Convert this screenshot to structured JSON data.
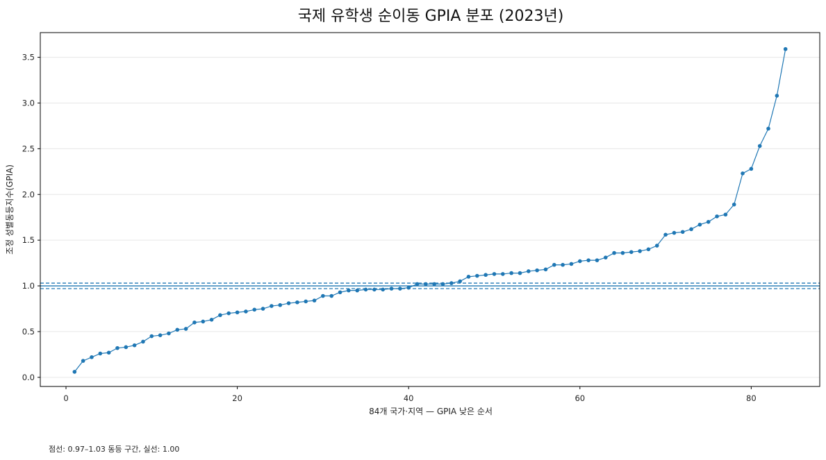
{
  "chart_data": {
    "type": "line",
    "title": "국제 유학생 순이동 GPIA 분포 (2023년)",
    "xlabel": "84개 국가·지역 — GPIA 낮은 순서",
    "ylabel": "조정 성별동등지수(GPIA)",
    "footnote": "점선: 0.97–1.03 동등 구간, 실선: 1.00",
    "xlim": [
      -3,
      88
    ],
    "ylim": [
      -0.1,
      3.77
    ],
    "x_ticks": [
      0,
      20,
      40,
      60,
      80
    ],
    "x_tick_labels": [
      "0",
      "20",
      "40",
      "60",
      "80"
    ],
    "y_ticks": [
      0.0,
      0.5,
      1.0,
      1.5,
      2.0,
      2.5,
      3.0,
      3.5
    ],
    "y_tick_labels": [
      "0.0",
      "0.5",
      "1.0",
      "1.5",
      "2.0",
      "2.5",
      "3.0",
      "3.5"
    ],
    "grid": "horizontal",
    "reference_lines": [
      {
        "y": 1.0,
        "style": "solid"
      },
      {
        "y": 0.97,
        "style": "dashed"
      },
      {
        "y": 1.03,
        "style": "dashed"
      }
    ],
    "series": [
      {
        "color": "#1f77b4",
        "x": [
          1,
          2,
          3,
          4,
          5,
          6,
          7,
          8,
          9,
          10,
          11,
          12,
          13,
          14,
          15,
          16,
          17,
          18,
          19,
          20,
          21,
          22,
          23,
          24,
          25,
          26,
          27,
          28,
          29,
          30,
          31,
          32,
          33,
          34,
          35,
          36,
          37,
          38,
          39,
          40,
          41,
          42,
          43,
          44,
          45,
          46,
          47,
          48,
          49,
          50,
          51,
          52,
          53,
          54,
          55,
          56,
          57,
          58,
          59,
          60,
          61,
          62,
          63,
          64,
          65,
          66,
          67,
          68,
          69,
          70,
          71,
          72,
          73,
          74,
          75,
          76,
          77,
          78,
          79,
          80,
          81,
          82,
          83,
          84
        ],
        "y": [
          0.06,
          0.18,
          0.22,
          0.26,
          0.27,
          0.32,
          0.33,
          0.35,
          0.39,
          0.45,
          0.46,
          0.48,
          0.52,
          0.53,
          0.6,
          0.61,
          0.63,
          0.68,
          0.7,
          0.71,
          0.72,
          0.74,
          0.75,
          0.78,
          0.79,
          0.81,
          0.82,
          0.83,
          0.84,
          0.89,
          0.89,
          0.93,
          0.95,
          0.95,
          0.96,
          0.96,
          0.96,
          0.97,
          0.97,
          0.98,
          1.02,
          1.02,
          1.02,
          1.02,
          1.03,
          1.05,
          1.1,
          1.11,
          1.12,
          1.13,
          1.13,
          1.14,
          1.14,
          1.16,
          1.17,
          1.18,
          1.23,
          1.23,
          1.24,
          1.27,
          1.28,
          1.28,
          1.31,
          1.36,
          1.36,
          1.37,
          1.38,
          1.4,
          1.44,
          1.56,
          1.58,
          1.59,
          1.62,
          1.67,
          1.7,
          1.76,
          1.78,
          1.89,
          2.23,
          2.28,
          2.53,
          2.72,
          3.08,
          3.59
        ]
      }
    ]
  }
}
